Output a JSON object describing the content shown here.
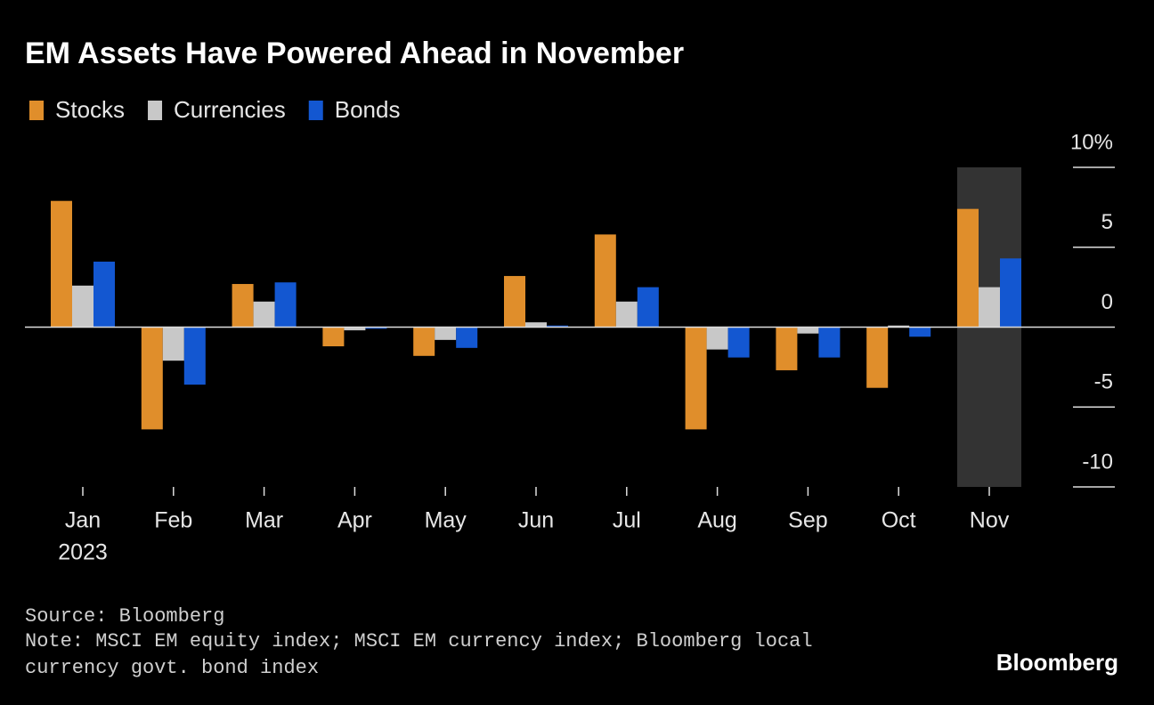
{
  "chart_data": {
    "type": "bar",
    "title": "EM Assets Have Powered Ahead in November",
    "categories": [
      "Jan",
      "Feb",
      "Mar",
      "Apr",
      "May",
      "Jun",
      "Jul",
      "Aug",
      "Sep",
      "Oct",
      "Nov"
    ],
    "year": "2023",
    "highlight": "Nov",
    "series": [
      {
        "name": "Stocks",
        "color": "#e08e2b",
        "values": [
          7.9,
          -6.4,
          2.7,
          -1.2,
          -1.8,
          3.2,
          5.8,
          -6.4,
          -2.7,
          -3.8,
          7.4
        ]
      },
      {
        "name": "Currencies",
        "color": "#c8c8c8",
        "values": [
          2.6,
          -2.1,
          1.6,
          -0.2,
          -0.8,
          0.3,
          1.6,
          -1.4,
          -0.4,
          0.1,
          2.5
        ]
      },
      {
        "name": "Bonds",
        "color": "#1357d1",
        "values": [
          4.1,
          -3.6,
          2.8,
          -0.1,
          -1.3,
          0.1,
          2.5,
          -1.9,
          -1.9,
          -0.6,
          4.3
        ]
      }
    ],
    "ylim": [
      -10,
      10
    ],
    "yticks": [
      {
        "value": 10,
        "label": "10%"
      },
      5,
      0,
      -5,
      -10
    ],
    "source": "Source: Bloomberg",
    "note": "Note: MSCI EM equity index; MSCI EM currency index; Bloomberg local currency govt. bond index",
    "brand": "Bloomberg"
  }
}
